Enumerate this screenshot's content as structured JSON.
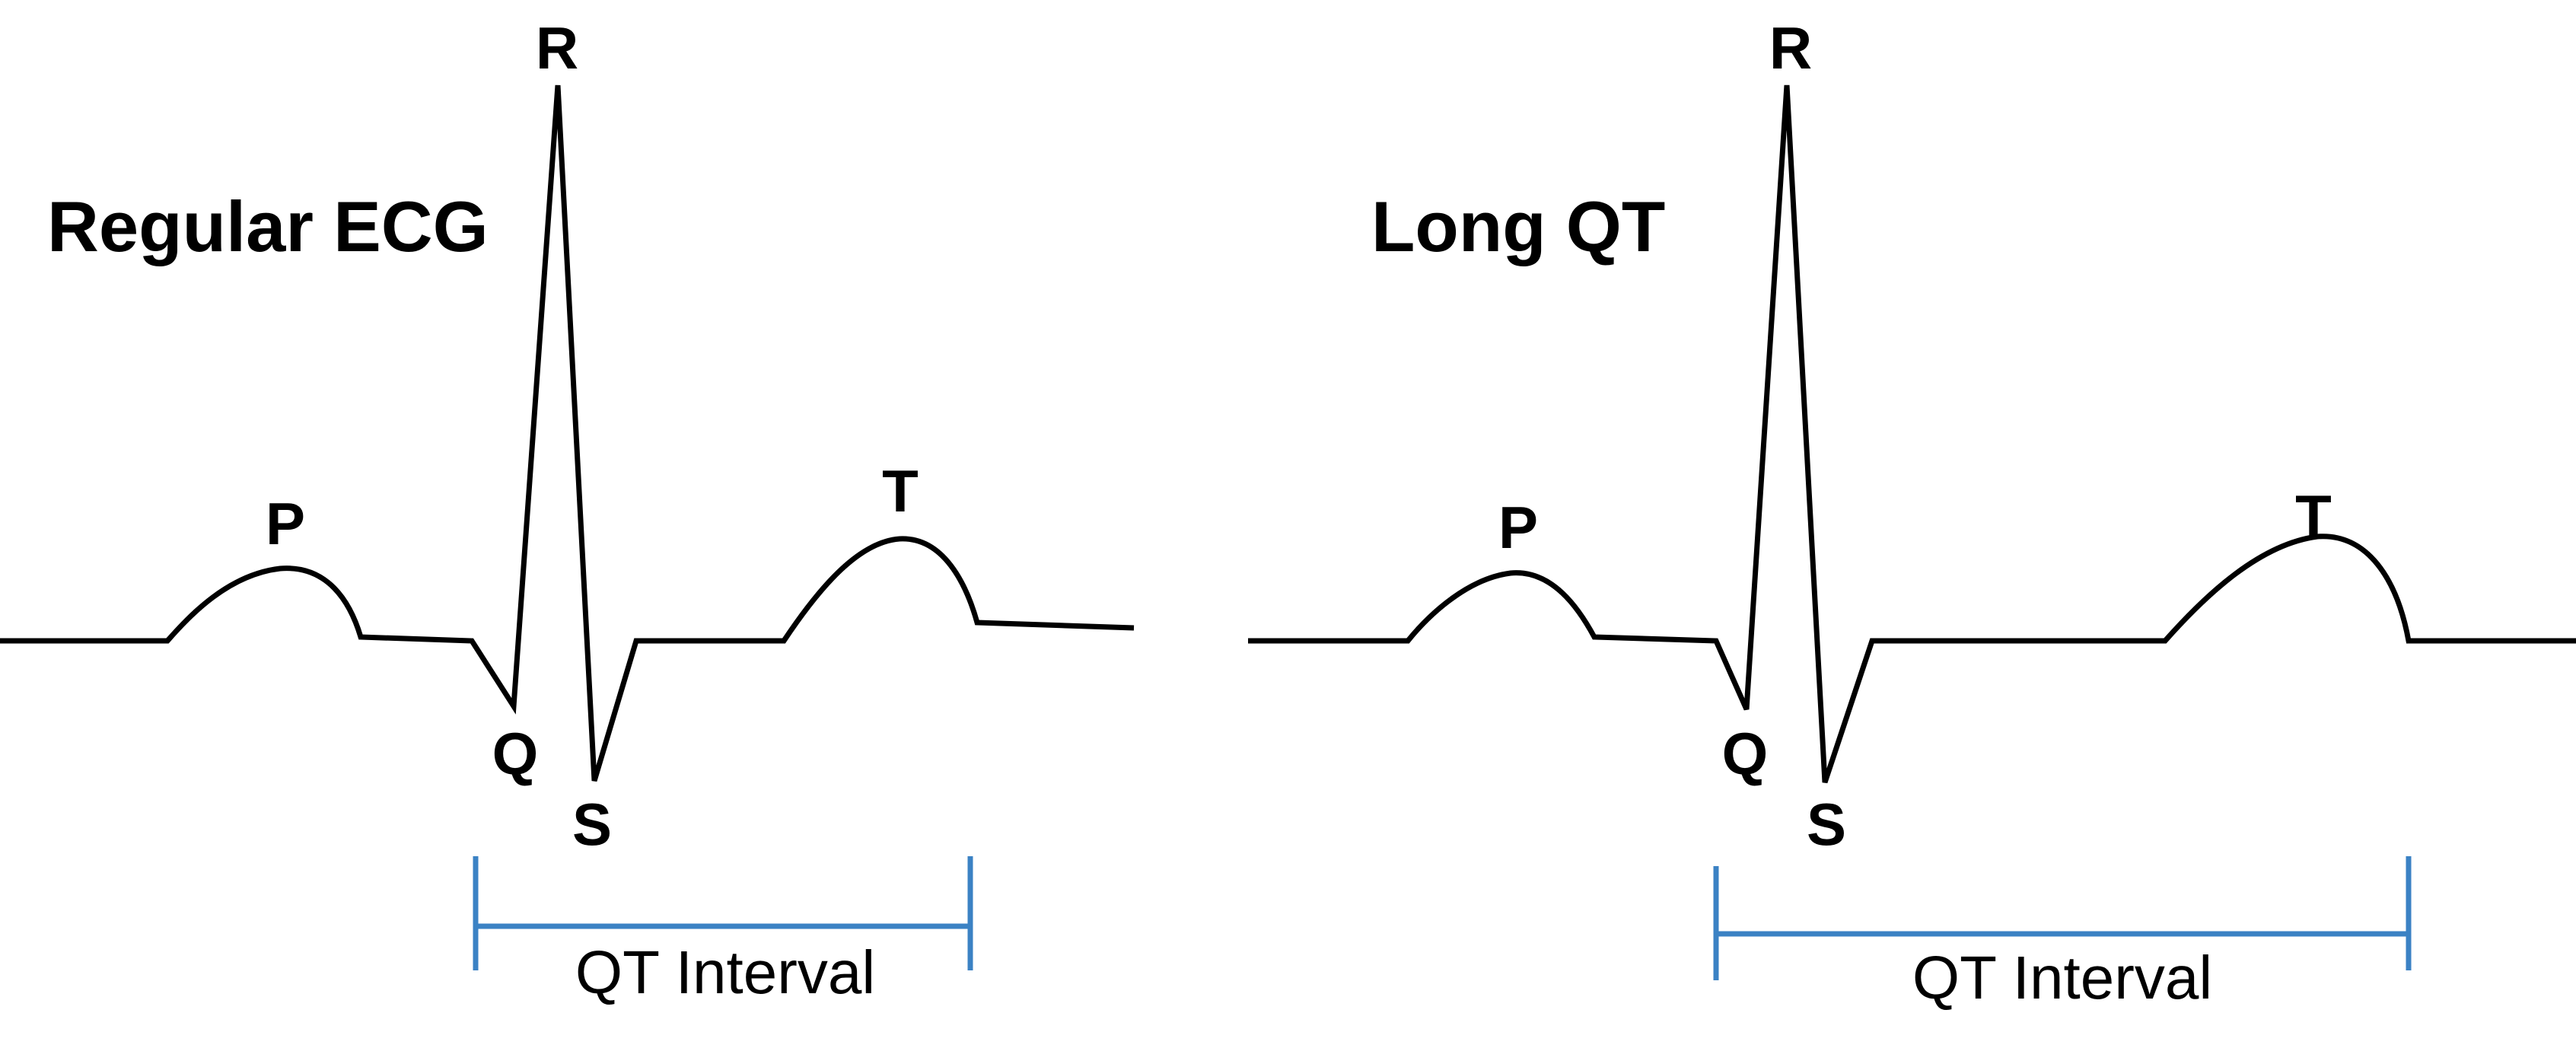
{
  "colors": {
    "trace": "#000000",
    "interval": "#3b82c4",
    "background": "#ffffff"
  },
  "panels": [
    {
      "title": "Regular ECG",
      "waves": {
        "p": "P",
        "q": "Q",
        "r": "R",
        "s": "S",
        "t": "T"
      },
      "interval_label": "QT Interval"
    },
    {
      "title": "Long QT",
      "waves": {
        "p": "P",
        "q": "Q",
        "r": "R",
        "s": "S",
        "t": "T"
      },
      "interval_label": "QT Interval"
    }
  ]
}
